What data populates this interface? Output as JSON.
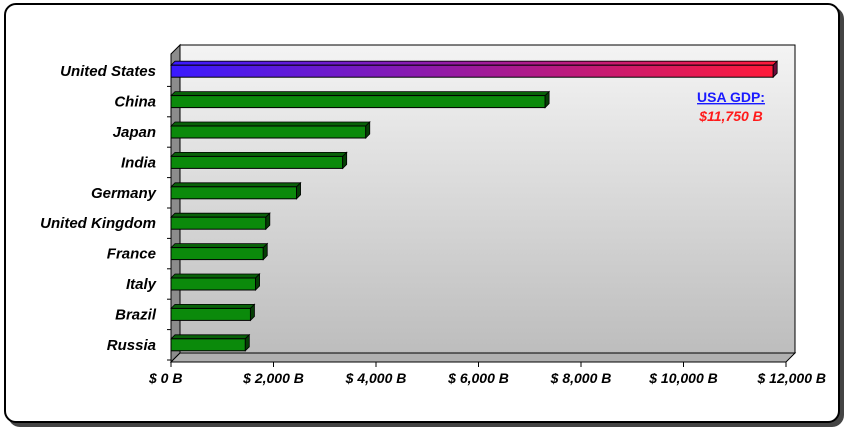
{
  "chart_data": {
    "type": "bar",
    "orientation": "horizontal",
    "categories": [
      "United States",
      "China",
      "Japan",
      "India",
      "Germany",
      "United Kingdom",
      "France",
      "Italy",
      "Brazil",
      "Russia"
    ],
    "values": [
      11750,
      7300,
      3800,
      3350,
      2450,
      1850,
      1800,
      1650,
      1550,
      1450
    ],
    "xlim": [
      0,
      12000
    ],
    "x_ticks": [
      0,
      2000,
      4000,
      6000,
      8000,
      10000,
      12000
    ],
    "x_tick_labels": [
      "$ 0 B",
      "$ 2,000 B",
      "$ 4,000 B",
      "$ 6,000 B",
      "$ 8,000 B",
      "$ 10,000 B",
      "$ 12,000 B"
    ],
    "title": "",
    "xlabel": "",
    "ylabel": "",
    "grid": false,
    "style": "3d",
    "colors": {
      "default_bar": "#0b8a0b",
      "highlight_start": "#3a1aff",
      "highlight_end": "#ff1a3a"
    },
    "annotation": {
      "title": "USA GDP:",
      "value": "$11,750 B"
    }
  }
}
